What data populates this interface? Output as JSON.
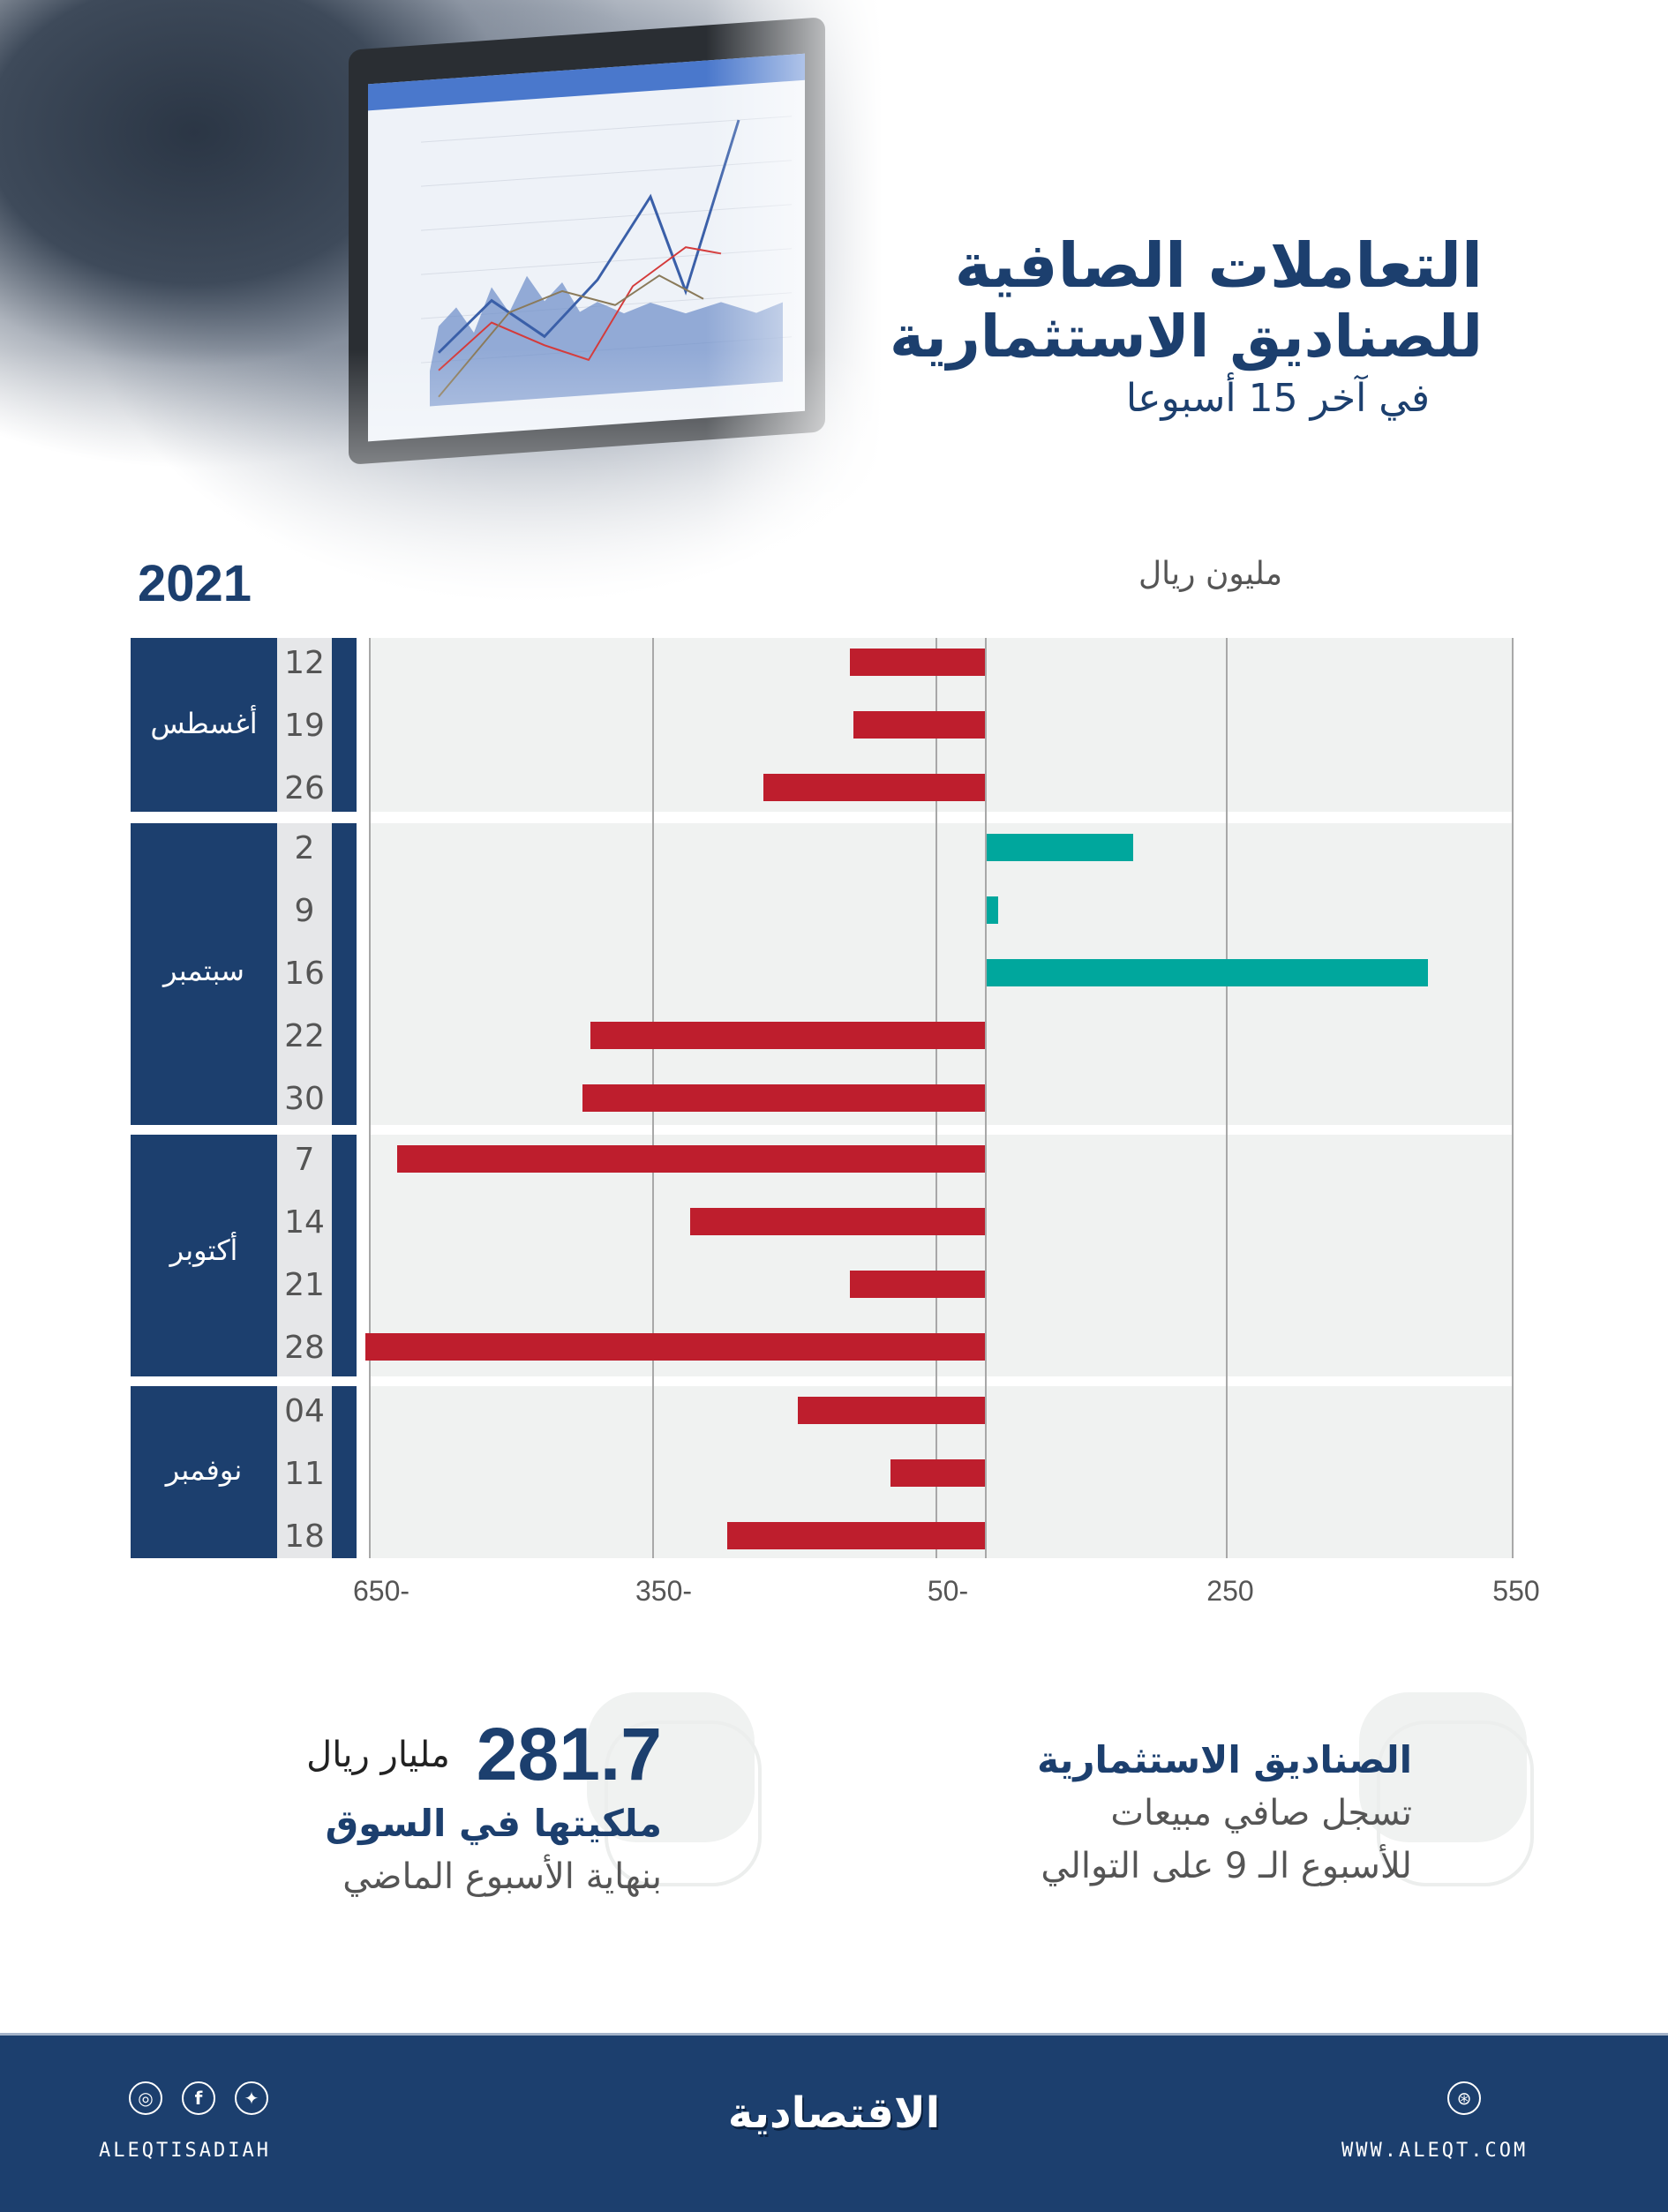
{
  "header": {
    "title_line1": "التعاملات الصافية",
    "title_line2": "للصناديق الاستثمارية",
    "title_line3": "في آخر 15 أسبوعا"
  },
  "chart_meta": {
    "year": "2021",
    "unit": "مليون ريال"
  },
  "months": [
    {
      "label": "أغسطس",
      "dates": [
        "12",
        "19",
        "26"
      ]
    },
    {
      "label": "سبتمبر",
      "dates": [
        "2",
        "9",
        "16",
        "22",
        "30"
      ]
    },
    {
      "label": "أكتوبر",
      "dates": [
        "7",
        "14",
        "21",
        "28"
      ]
    },
    {
      "label": "نوفمبر",
      "dates": [
        "04",
        "11",
        "18"
      ]
    }
  ],
  "x_ticks": [
    "650-",
    "350-",
    "50-",
    "250",
    "550"
  ],
  "colors": {
    "navy": "#1c3f6e",
    "negative": "#be1e2d",
    "positive": "#00a79d",
    "plot_bg": "#f0f2f1"
  },
  "chart_data": {
    "type": "bar",
    "orientation": "horizontal",
    "title": "التعاملات الصافية للصناديق الاستثمارية في آخر 15 أسبوعا",
    "xlabel": "مليون ريال",
    "ylabel": "",
    "year": "2021",
    "categories": [
      "أغسطس 12",
      "أغسطس 19",
      "أغسطس 26",
      "سبتمبر 2",
      "سبتمبر 9",
      "سبتمبر 16",
      "سبتمبر 22",
      "سبتمبر 30",
      "أكتوبر 7",
      "أكتوبر 14",
      "أكتوبر 21",
      "أكتوبر 28",
      "نوفمبر 04",
      "نوفمبر 11",
      "نوفمبر 18"
    ],
    "values": [
      -142,
      -138,
      -232,
      156,
      14,
      465,
      -414,
      -422,
      -617,
      -309,
      -142,
      -650,
      -196,
      -99,
      -270
    ],
    "xlim": [
      -650,
      550
    ],
    "x_ticks": [
      -650,
      -350,
      -50,
      250,
      550
    ],
    "grid": true,
    "legend": "none",
    "color_rule": {
      "negative": "#be1e2d",
      "positive": "#00a79d"
    }
  },
  "facts": {
    "right": {
      "heading": "الصناديق الاستثمارية",
      "line1": "تسجل صافي مبيعات",
      "line2": "للأسبوع الـ 9 على التوالي"
    },
    "left": {
      "number": "281.7",
      "number_unit": "مليار ريال",
      "heading": "ملكيتها في السوق",
      "line1": "بنهاية الأسبوع الماضي"
    }
  },
  "footer": {
    "brand": "الاقتصادية",
    "social_handle": "ALEQTISADIAH",
    "website": "WWW.ALEQT.COM",
    "icons": [
      "instagram-icon",
      "facebook-icon",
      "twitter-icon",
      "web-icon"
    ]
  }
}
